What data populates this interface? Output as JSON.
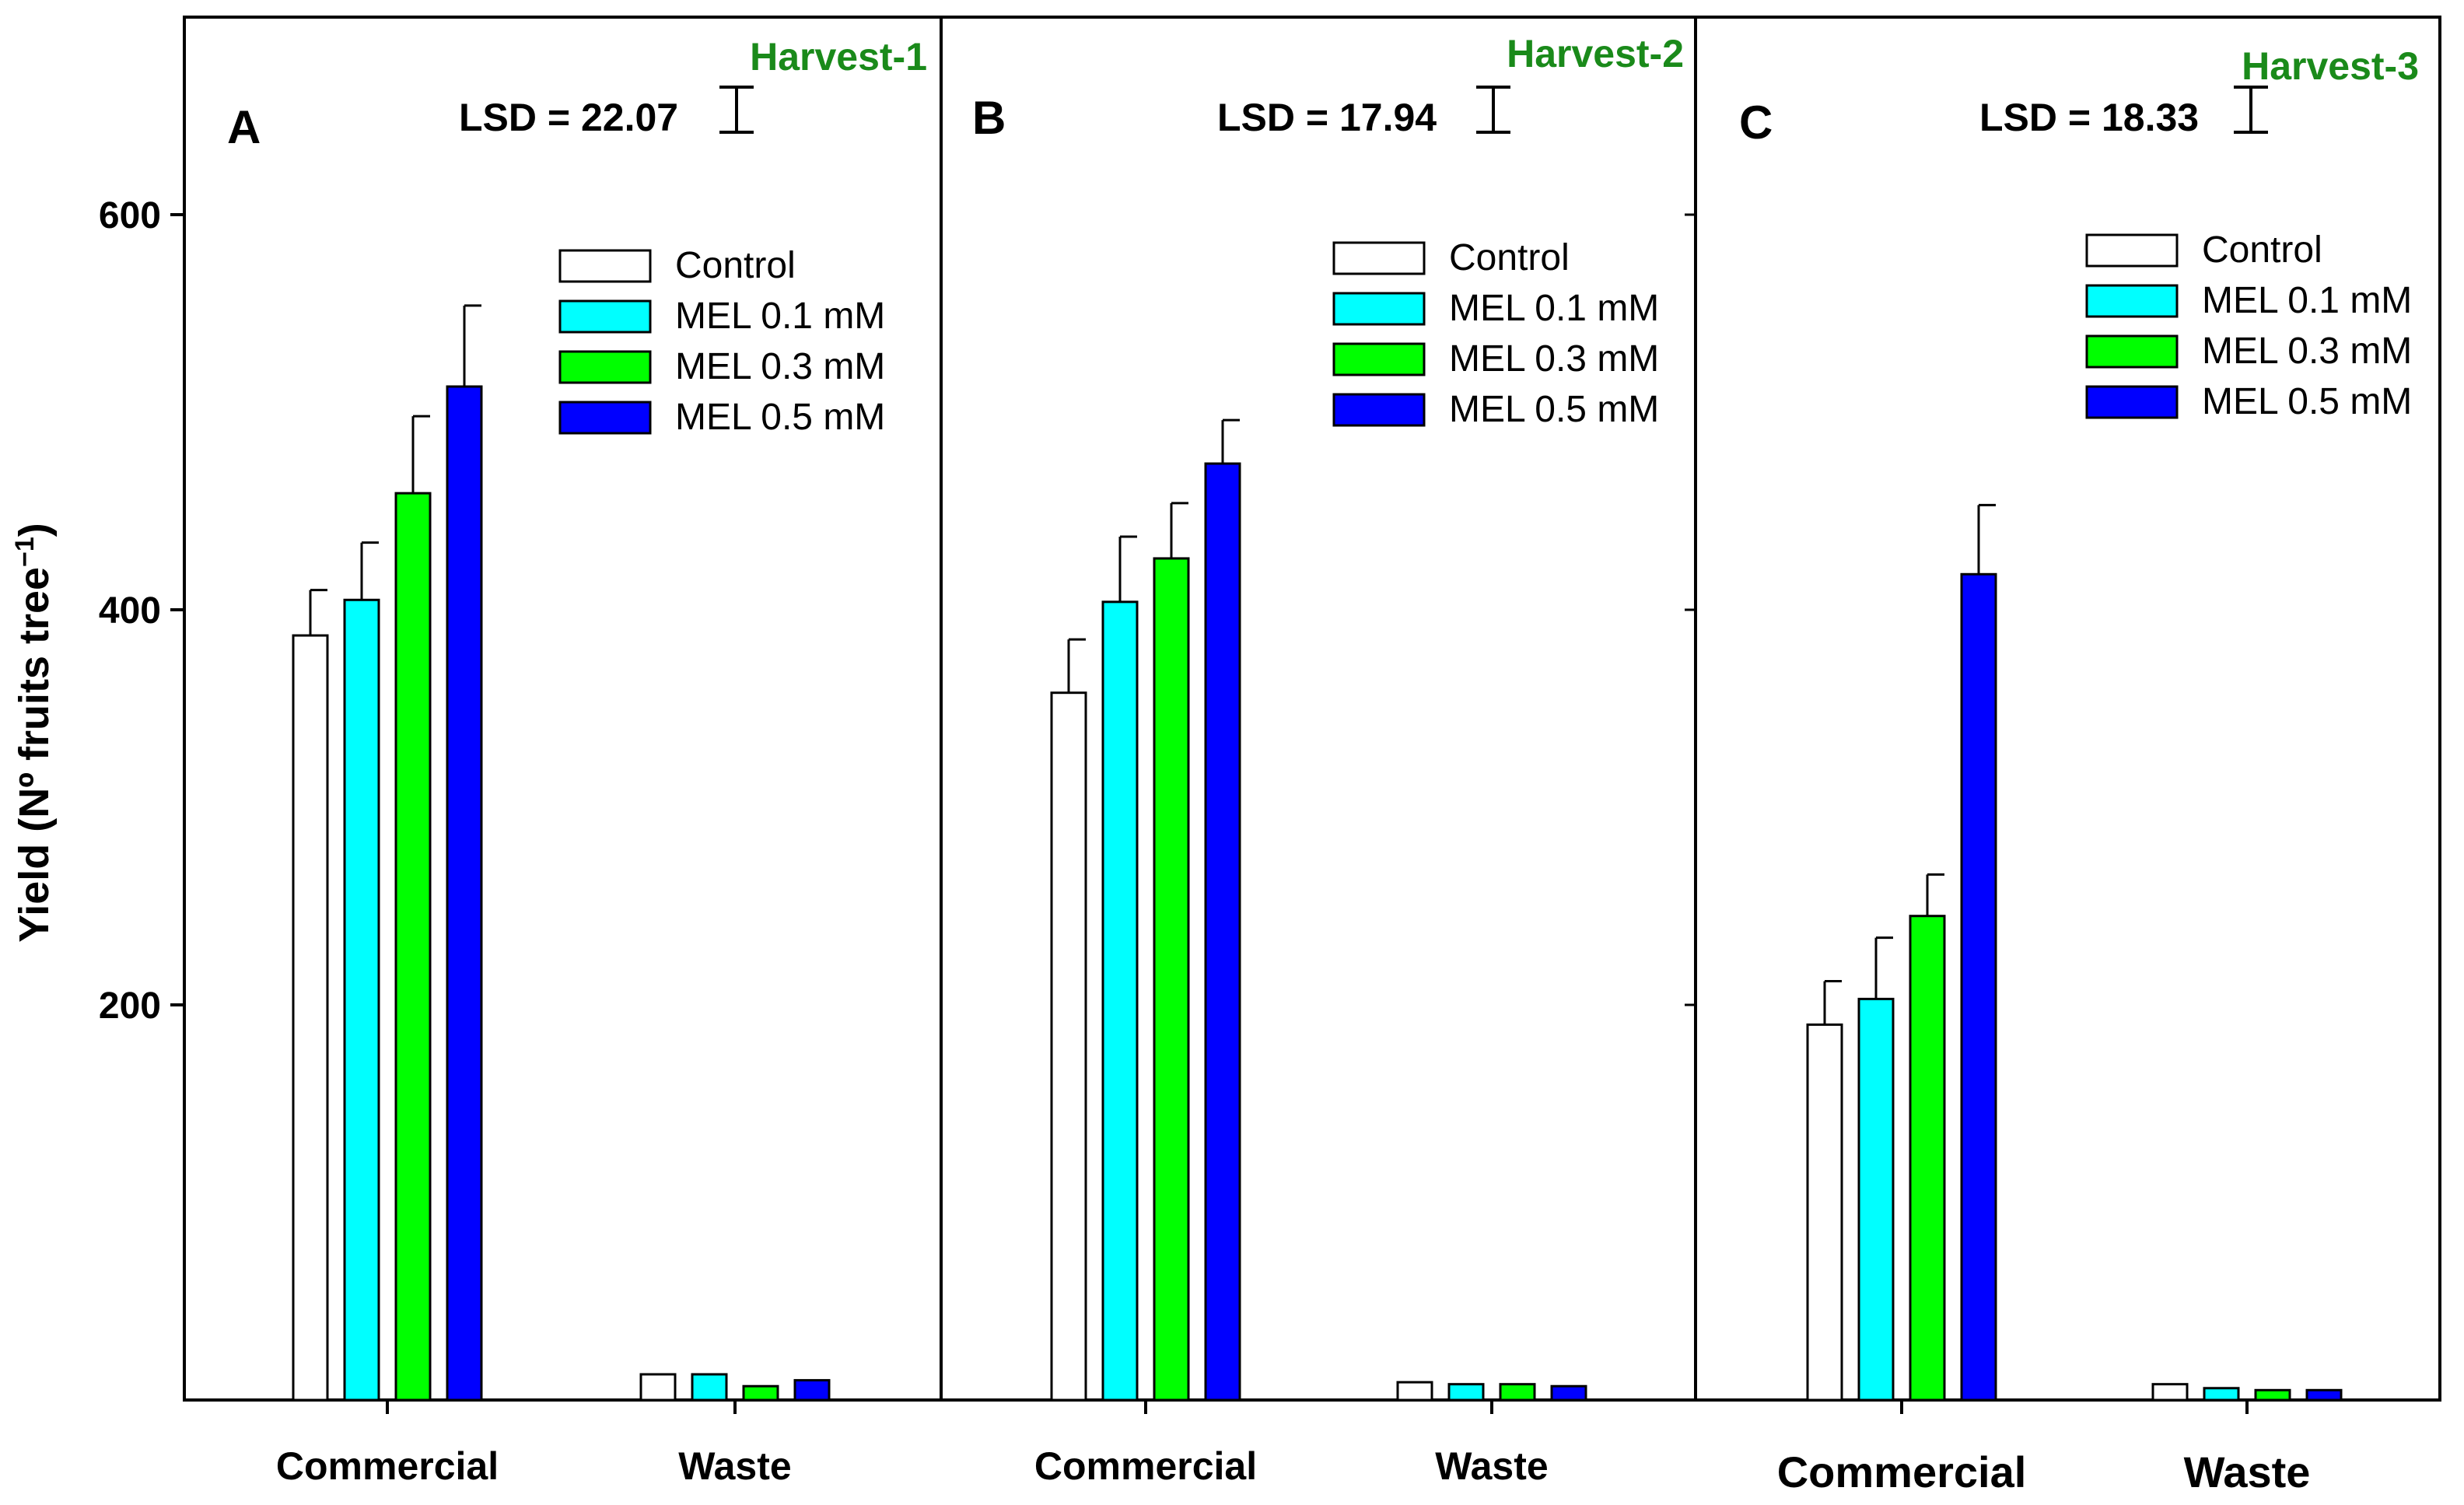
{
  "colors": {
    "Control": "#ffffff",
    "MEL 0.1 mM": "#00ffff",
    "MEL 0.3 mM": "#00ff00",
    "MEL 0.5 mM": "#0000ff",
    "harvest_title": "#1a8a1a"
  },
  "chart_data": {
    "type": "bar",
    "ylabel": "Yield (Nº fruits tree",
    "ylabel_sup": "−1",
    "ylabel_close": ")",
    "ylim": [
      0,
      700
    ],
    "yticks": [
      200,
      400,
      600
    ],
    "yticklabels": [
      "200",
      "400",
      "600"
    ],
    "categories": [
      "Commercial",
      "Waste"
    ],
    "legend": [
      "Control",
      "MEL 0.1 mM",
      "MEL 0.3 mM",
      "MEL 0.5 mM"
    ],
    "panels": [
      {
        "letter": "A",
        "title": "Harvest-1",
        "lsd_text": "LSD = 22.07",
        "lsd_value": 22.07,
        "series": [
          {
            "name": "Control",
            "values": [
              387,
              13
            ],
            "errors": [
              23,
              0
            ]
          },
          {
            "name": "MEL 0.1 mM",
            "values": [
              405,
              13
            ],
            "errors": [
              29,
              0
            ]
          },
          {
            "name": "MEL 0.3 mM",
            "values": [
              459,
              7
            ],
            "errors": [
              39,
              0
            ]
          },
          {
            "name": "MEL 0.5 mM",
            "values": [
              513,
              10
            ],
            "errors": [
              41,
              0
            ]
          }
        ]
      },
      {
        "letter": "B",
        "title": "Harvest-2",
        "lsd_text": "LSD = 17.94",
        "lsd_value": 17.94,
        "series": [
          {
            "name": "Control",
            "values": [
              358,
              9
            ],
            "errors": [
              27,
              0
            ]
          },
          {
            "name": "MEL 0.1 mM",
            "values": [
              404,
              8
            ],
            "errors": [
              33,
              0
            ]
          },
          {
            "name": "MEL 0.3 mM",
            "values": [
              426,
              8
            ],
            "errors": [
              28,
              0
            ]
          },
          {
            "name": "MEL 0.5 mM",
            "values": [
              474,
              7
            ],
            "errors": [
              22,
              0
            ]
          }
        ]
      },
      {
        "letter": "C",
        "title": "Harvest-3",
        "lsd_text": "LSD = 18.33",
        "lsd_value": 18.33,
        "series": [
          {
            "name": "Control",
            "values": [
              190,
              8
            ],
            "errors": [
              22,
              0
            ]
          },
          {
            "name": "MEL 0.1 mM",
            "values": [
              203,
              6
            ],
            "errors": [
              31,
              0
            ]
          },
          {
            "name": "MEL 0.3 mM",
            "values": [
              245,
              5
            ],
            "errors": [
              21,
              0
            ]
          },
          {
            "name": "MEL 0.5 mM",
            "values": [
              418,
              5
            ],
            "errors": [
              35,
              0
            ]
          }
        ]
      }
    ]
  }
}
